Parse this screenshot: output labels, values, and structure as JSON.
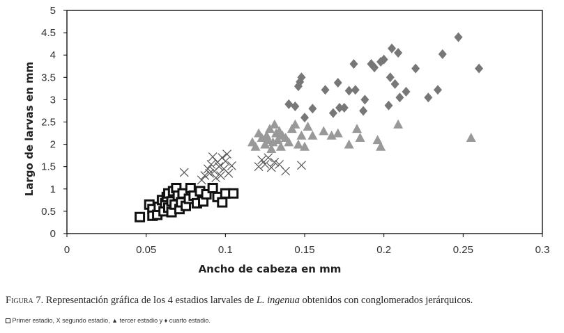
{
  "chart_data": {
    "type": "scatter",
    "xlabel": "Ancho de cabeza  en mm",
    "ylabel": "Largo de larvas  en mm",
    "xlim": [
      0,
      0.3
    ],
    "ylim": [
      0,
      5
    ],
    "x_ticks": [
      "0",
      "0.05",
      "0.1",
      "0.15",
      "0.2",
      "0.25",
      "0.3"
    ],
    "y_ticks": [
      "0",
      "0.5",
      "1",
      "1.5",
      "2",
      "2.5",
      "3",
      "3.5",
      "4",
      "4.5",
      "5"
    ],
    "grid": false,
    "legend": "below",
    "series": [
      {
        "name": "Primer estadio",
        "marker": "square",
        "color": "#111111",
        "points": [
          [
            0.046,
            0.37
          ],
          [
            0.052,
            0.65
          ],
          [
            0.054,
            0.55
          ],
          [
            0.054,
            0.4
          ],
          [
            0.057,
            0.42
          ],
          [
            0.058,
            0.6
          ],
          [
            0.06,
            0.75
          ],
          [
            0.061,
            0.5
          ],
          [
            0.062,
            0.68
          ],
          [
            0.063,
            0.82
          ],
          [
            0.064,
            0.9
          ],
          [
            0.064,
            0.58
          ],
          [
            0.066,
            0.72
          ],
          [
            0.066,
            0.48
          ],
          [
            0.067,
            0.95
          ],
          [
            0.068,
            0.65
          ],
          [
            0.069,
            1.02
          ],
          [
            0.07,
            0.85
          ],
          [
            0.071,
            0.55
          ],
          [
            0.072,
            0.7
          ],
          [
            0.073,
            0.9
          ],
          [
            0.075,
            0.62
          ],
          [
            0.077,
            0.78
          ],
          [
            0.078,
            1.02
          ],
          [
            0.08,
            0.85
          ],
          [
            0.082,
            0.68
          ],
          [
            0.084,
            0.95
          ],
          [
            0.086,
            0.72
          ],
          [
            0.088,
            0.88
          ],
          [
            0.092,
            1.02
          ],
          [
            0.095,
            0.82
          ],
          [
            0.098,
            0.7
          ],
          [
            0.1,
            0.9
          ],
          [
            0.105,
            0.9
          ]
        ]
      },
      {
        "name": "segundo estadio",
        "marker": "x",
        "color": "#555555",
        "points": [
          [
            0.074,
            1.37
          ],
          [
            0.085,
            1.2
          ],
          [
            0.087,
            1.3
          ],
          [
            0.089,
            1.45
          ],
          [
            0.09,
            1.35
          ],
          [
            0.091,
            1.55
          ],
          [
            0.092,
            1.72
          ],
          [
            0.093,
            1.4
          ],
          [
            0.094,
            1.25
          ],
          [
            0.095,
            1.6
          ],
          [
            0.096,
            1.5
          ],
          [
            0.097,
            1.3
          ],
          [
            0.098,
            1.7
          ],
          [
            0.099,
            1.45
          ],
          [
            0.1,
            1.62
          ],
          [
            0.101,
            1.78
          ],
          [
            0.102,
            1.35
          ],
          [
            0.104,
            1.52
          ],
          [
            0.121,
            1.5
          ],
          [
            0.123,
            1.65
          ],
          [
            0.125,
            1.55
          ],
          [
            0.127,
            1.7
          ],
          [
            0.129,
            1.48
          ],
          [
            0.131,
            1.6
          ],
          [
            0.134,
            1.55
          ],
          [
            0.138,
            1.4
          ],
          [
            0.148,
            1.53
          ]
        ]
      },
      {
        "name": "tercer estadio",
        "marker": "triangle",
        "color": "#999999",
        "points": [
          [
            0.117,
            2.05
          ],
          [
            0.119,
            1.95
          ],
          [
            0.121,
            2.25
          ],
          [
            0.123,
            2.15
          ],
          [
            0.125,
            2.0
          ],
          [
            0.126,
            2.2
          ],
          [
            0.127,
            2.1
          ],
          [
            0.128,
            2.35
          ],
          [
            0.129,
            1.9
          ],
          [
            0.13,
            2.05
          ],
          [
            0.131,
            2.45
          ],
          [
            0.132,
            2.25
          ],
          [
            0.133,
            2.1
          ],
          [
            0.134,
            2.3
          ],
          [
            0.135,
            1.95
          ],
          [
            0.136,
            2.2
          ],
          [
            0.138,
            2.15
          ],
          [
            0.14,
            2.05
          ],
          [
            0.142,
            2.35
          ],
          [
            0.144,
            2.45
          ],
          [
            0.146,
            2.0
          ],
          [
            0.148,
            2.2
          ],
          [
            0.15,
            1.95
          ],
          [
            0.152,
            2.4
          ],
          [
            0.155,
            2.2
          ],
          [
            0.162,
            2.3
          ],
          [
            0.167,
            2.2
          ],
          [
            0.171,
            2.25
          ],
          [
            0.178,
            2.0
          ],
          [
            0.183,
            2.35
          ],
          [
            0.185,
            2.15
          ],
          [
            0.196,
            2.1
          ],
          [
            0.198,
            1.95
          ],
          [
            0.209,
            2.45
          ],
          [
            0.255,
            2.15
          ]
        ]
      },
      {
        "name": "cuarto estadio",
        "marker": "diamond",
        "color": "#777777",
        "points": [
          [
            0.14,
            2.9
          ],
          [
            0.144,
            2.85
          ],
          [
            0.146,
            3.3
          ],
          [
            0.147,
            3.4
          ],
          [
            0.148,
            3.5
          ],
          [
            0.15,
            2.6
          ],
          [
            0.155,
            2.8
          ],
          [
            0.163,
            3.22
          ],
          [
            0.168,
            2.7
          ],
          [
            0.171,
            3.38
          ],
          [
            0.172,
            2.82
          ],
          [
            0.175,
            2.82
          ],
          [
            0.178,
            3.2
          ],
          [
            0.181,
            3.8
          ],
          [
            0.182,
            3.22
          ],
          [
            0.187,
            2.75
          ],
          [
            0.188,
            3.0
          ],
          [
            0.192,
            3.8
          ],
          [
            0.194,
            3.72
          ],
          [
            0.198,
            3.85
          ],
          [
            0.2,
            3.9
          ],
          [
            0.203,
            2.87
          ],
          [
            0.204,
            3.5
          ],
          [
            0.205,
            4.15
          ],
          [
            0.207,
            3.35
          ],
          [
            0.209,
            4.05
          ],
          [
            0.21,
            3.05
          ],
          [
            0.214,
            3.18
          ],
          [
            0.22,
            3.7
          ],
          [
            0.228,
            3.05
          ],
          [
            0.234,
            3.22
          ],
          [
            0.237,
            4.02
          ],
          [
            0.247,
            4.4
          ],
          [
            0.26,
            3.7
          ]
        ]
      }
    ]
  },
  "caption": {
    "label": "Figura 7.",
    "text_before": " Representación gráfica de los 4 estadios larvales de ",
    "species": "L. ingenua",
    "text_after": " obtenidos con conglomerados jerárquicos."
  },
  "legend_note": {
    "primer": "Primer estadio,",
    "x_symbol": "X",
    "segundo": "segundo estadio,",
    "triangle_symbol": "▲",
    "tercer": "tercer estadio y",
    "diamond_symbol": "♦",
    "cuarto": "cuarto estadio."
  }
}
